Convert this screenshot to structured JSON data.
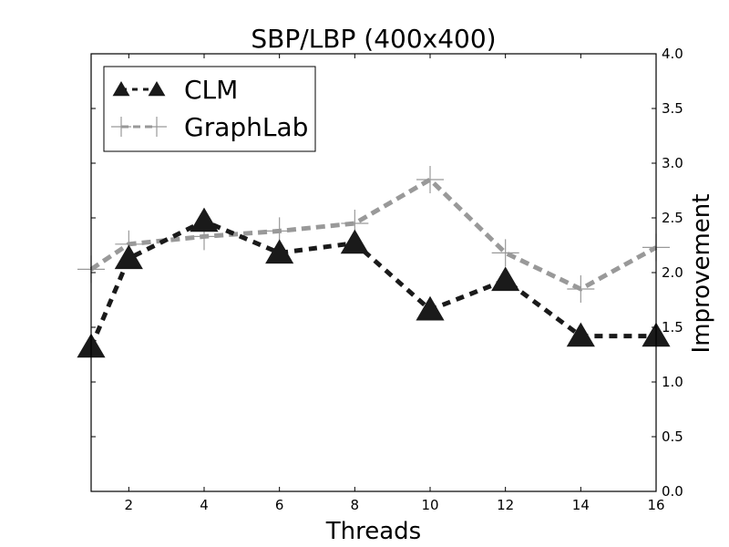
{
  "chart_data": {
    "type": "line",
    "title": "SBP/LBP (400x400)",
    "xlabel": "Threads",
    "ylabel": "Improvement",
    "xlim": [
      1,
      16
    ],
    "ylim": [
      0,
      4.0
    ],
    "y_axis_side": "right",
    "grid": false,
    "legend_position": "top-left",
    "x_ticks": [
      "2",
      "4",
      "6",
      "8",
      "10",
      "12",
      "14",
      "16"
    ],
    "y_ticks": [
      "0.0",
      "0.5",
      "1.0",
      "1.5",
      "2.0",
      "2.5",
      "3.0",
      "3.5",
      "4.0"
    ],
    "series": [
      {
        "name": "CLM",
        "color": "#1a1a1a",
        "marker": "triangle",
        "line_style": "dashed",
        "x": [
          1,
          2,
          4,
          6,
          8,
          10,
          12,
          14,
          16
        ],
        "y": [
          1.32,
          2.13,
          2.47,
          2.18,
          2.27,
          1.66,
          1.93,
          1.42,
          1.42
        ]
      },
      {
        "name": "GraphLab",
        "color": "#999999",
        "marker": "plus",
        "line_style": "dashed",
        "x": [
          1,
          2,
          4,
          6,
          8,
          10,
          12,
          14,
          16
        ],
        "y": [
          2.03,
          2.26,
          2.33,
          2.38,
          2.45,
          2.85,
          2.18,
          1.85,
          2.23
        ]
      }
    ]
  }
}
